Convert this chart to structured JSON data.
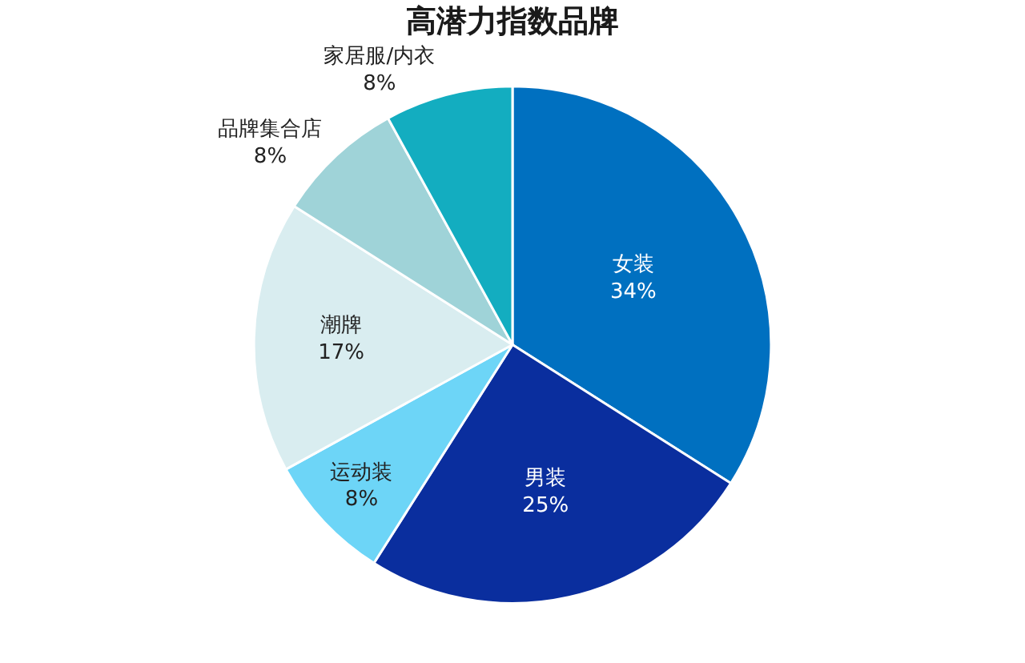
{
  "chart_data": {
    "type": "pie",
    "title": "高潜力指数品牌",
    "categories": [
      "女装",
      "男装",
      "运动装",
      "潮牌",
      "品牌集合店",
      "家居服/内衣"
    ],
    "values": [
      34,
      25,
      8,
      17,
      8,
      8
    ],
    "value_labels": [
      "34%",
      "25%",
      "8%",
      "17%",
      "8%",
      "8%"
    ],
    "colors": [
      "#0070c0",
      "#0a2e9e",
      "#6dd5f7",
      "#d9edf0",
      "#9fd3d8",
      "#13adc0"
    ],
    "legend": false
  }
}
